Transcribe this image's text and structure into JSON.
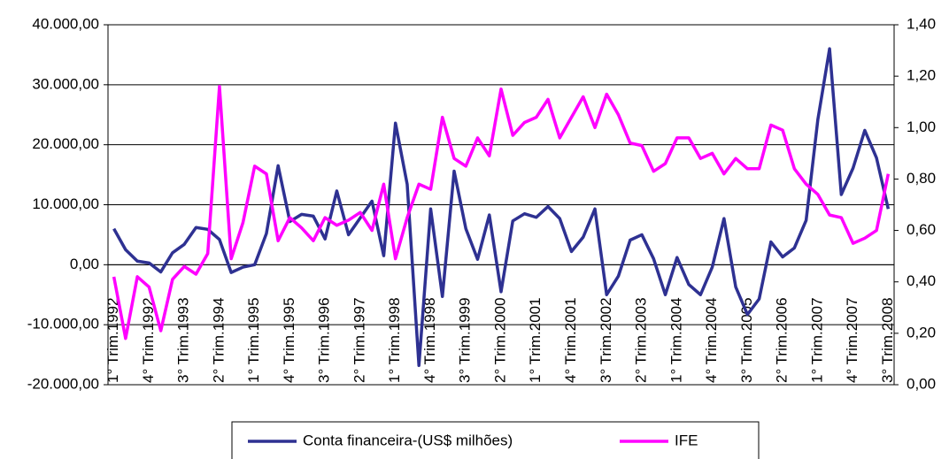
{
  "chart_data": {
    "type": "line",
    "categories": [
      "1° Trim.1992",
      null,
      null,
      "4° Trim.1992",
      null,
      null,
      "3° Trim.1993",
      null,
      null,
      "2° Trim.1994",
      null,
      null,
      "1° Trim.1995",
      null,
      null,
      "4° Trim.1995",
      null,
      null,
      "3° Trim.1996",
      null,
      null,
      "2° Trim.1997",
      null,
      null,
      "1° Trim.1998",
      null,
      null,
      "4° Trim.1998",
      null,
      null,
      "3° Trim.1999",
      null,
      null,
      "2° Trim.2000",
      null,
      null,
      "1° Trim.2001",
      null,
      null,
      "4° Trim.2001",
      null,
      null,
      "3° Trim.2002",
      null,
      null,
      "2° Trim.2003",
      null,
      null,
      "1° Trim.2004",
      null,
      null,
      "4° Trim.2004",
      null,
      null,
      "3° Trim.2005",
      null,
      null,
      "2° Trim.2006",
      null,
      null,
      "1° Trim.2007",
      null,
      null,
      "4° Trim.2007",
      null,
      null,
      "3° Trim.2008"
    ],
    "series": [
      {
        "name": "Conta financeira-(US$ milhões)",
        "color": "#2e3192",
        "values": [
          6000,
          2500,
          600,
          300,
          -1200,
          2000,
          3400,
          6200,
          5900,
          4200,
          -1300,
          -400,
          0,
          5200,
          16500,
          7200,
          8400,
          8100,
          4300,
          12300,
          5000,
          7800,
          10600,
          1500,
          23600,
          13400,
          -16800,
          9300,
          -5300,
          15600,
          6000,
          900,
          8300,
          -4500,
          7300,
          8500,
          7900,
          9700,
          7700,
          2200,
          4600,
          9300,
          -5000,
          -1900,
          4100,
          5000,
          1000,
          -5000,
          1200,
          -3300,
          -5000,
          -400,
          7700,
          -3700,
          -8300,
          -5700,
          3800,
          1300,
          2800,
          7400,
          24200,
          36000,
          11700,
          16100,
          22400,
          17800,
          9300
        ]
      },
      {
        "name": "IFE",
        "color": "#ff00ff",
        "axis": "y2",
        "values": [
          0.42,
          0.18,
          0.42,
          0.38,
          0.21,
          0.41,
          0.46,
          0.43,
          0.51,
          1.16,
          0.49,
          0.63,
          0.85,
          0.82,
          0.56,
          0.65,
          0.61,
          0.56,
          0.65,
          0.62,
          0.64,
          0.67,
          0.6,
          0.78,
          0.49,
          0.65,
          0.78,
          0.76,
          1.04,
          0.88,
          0.85,
          0.96,
          0.89,
          1.15,
          0.97,
          1.02,
          1.04,
          1.11,
          0.96,
          1.04,
          1.12,
          1.0,
          1.13,
          1.05,
          0.94,
          0.93,
          0.83,
          0.86,
          0.96,
          0.96,
          0.88,
          0.9,
          0.82,
          0.88,
          0.84,
          0.84,
          1.01,
          0.99,
          0.84,
          0.78,
          0.74,
          0.66,
          0.65,
          0.55,
          0.57,
          0.6,
          0.82
        ]
      }
    ],
    "ylim": [
      -20000,
      40000
    ],
    "yticks": [
      {
        "value": -20000,
        "label": "-20.000,00"
      },
      {
        "value": -10000,
        "label": "-10.000,00"
      },
      {
        "value": 0,
        "label": "0,00"
      },
      {
        "value": 10000,
        "label": "10.000,00"
      },
      {
        "value": 20000,
        "label": "20.000,00"
      },
      {
        "value": 30000,
        "label": "30.000,00"
      },
      {
        "value": 40000,
        "label": "40.000,00"
      }
    ],
    "y2lim": [
      0,
      1.4
    ],
    "y2ticks": [
      {
        "value": 0,
        "label": "0,00"
      },
      {
        "value": 0.2,
        "label": "0,20"
      },
      {
        "value": 0.4,
        "label": "0,40"
      },
      {
        "value": 0.6,
        "label": "0,60"
      },
      {
        "value": 0.8,
        "label": "0,80"
      },
      {
        "value": 1.0,
        "label": "1,00"
      },
      {
        "value": 1.2,
        "label": "1,20"
      },
      {
        "value": 1.4,
        "label": "1,40"
      }
    ],
    "grid": true,
    "legend": "bottom"
  }
}
